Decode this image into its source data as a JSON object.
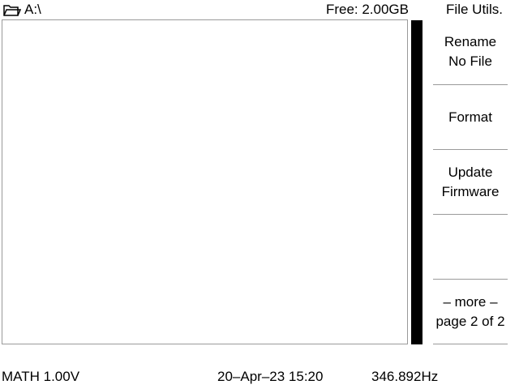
{
  "header": {
    "path": "A:\\",
    "folder_icon": "folder-icon",
    "free_space": "Free: 2.00GB"
  },
  "menu": {
    "title": "File Utils.",
    "items": [
      {
        "line1": "Rename",
        "line2": "No File"
      },
      {
        "line1": "Format",
        "line2": ""
      },
      {
        "line1": "Update",
        "line2": "Firmware"
      },
      {
        "line1": "",
        "line2": ""
      },
      {
        "line1": "– more –",
        "line2": "page 2 of 2"
      }
    ]
  },
  "status": {
    "math": "MATH 1.00V",
    "datetime": "20–Apr–23 15:20",
    "frequency": "346.892Hz"
  },
  "colors": {
    "background": "#ffffff",
    "text": "#000000",
    "border": "#9a9a9a",
    "scrollbar": "#000000"
  }
}
